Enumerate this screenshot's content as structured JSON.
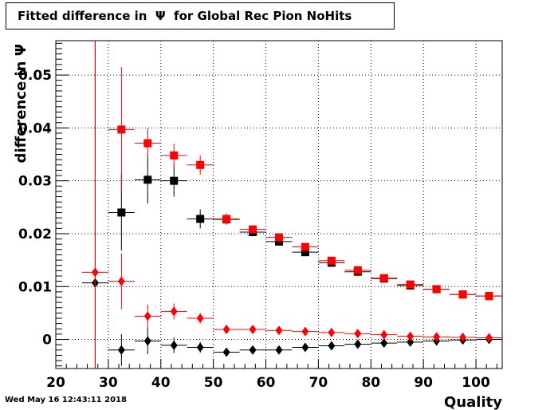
{
  "title": "Fitted difference in  Ψ  for Global Rec Pion NoHits",
  "timestamp": "Wed May 16 12:43:11 2018",
  "chart_data": {
    "type": "scatter",
    "title": "Fitted difference in  Ψ  for Global Rec Pion NoHits",
    "xlabel": "Quality",
    "ylabel": "difference in  Ψ",
    "xlim": [
      20,
      105
    ],
    "ylim": [
      -0.0055,
      0.0565
    ],
    "xticks": [
      20,
      30,
      40,
      50,
      60,
      70,
      80,
      90,
      100
    ],
    "xtick_labels": [
      "20",
      "30",
      "40",
      "50",
      "60",
      "70",
      "80",
      "90",
      "100"
    ],
    "yticks": [
      0,
      0.01,
      0.02,
      0.03,
      0.04,
      0.05
    ],
    "ytick_labels": [
      "0",
      "0.01",
      "0.02",
      "0.03",
      "0.04",
      "0.05"
    ],
    "grid": true,
    "x_bin_half_width": 2.5,
    "series": [
      {
        "marker": "square",
        "color": "#000000",
        "x": [
          32.5,
          37.5,
          42.5,
          47.5,
          52.5,
          57.5,
          62.5,
          67.5,
          72.5,
          77.5,
          82.5,
          87.5,
          92.5,
          97.5,
          102.5
        ],
        "y": [
          0.024,
          0.0302,
          0.03,
          0.0228,
          0.0227,
          0.0203,
          0.0185,
          0.0165,
          0.0145,
          0.0128,
          0.0115,
          0.0102,
          0.0095,
          0.0085,
          0.0082
        ],
        "yerr": [
          0.0072,
          0.0045,
          0.003,
          0.0018,
          0.001,
          0.0008,
          0.0006,
          0.0005,
          0.0004,
          0.0004,
          0.0003,
          0.0003,
          0.0003,
          0.0002,
          0.0002
        ]
      },
      {
        "marker": "square",
        "color": "#ff0000",
        "x": [
          32.5,
          37.5,
          42.5,
          47.5,
          52.5,
          57.5,
          62.5,
          67.5,
          72.5,
          77.5,
          82.5,
          87.5,
          92.5,
          97.5,
          102.5
        ],
        "y": [
          0.0397,
          0.0371,
          0.0348,
          0.033,
          0.0228,
          0.0208,
          0.0193,
          0.0175,
          0.0149,
          0.0131,
          0.0116,
          0.0104,
          0.0095,
          0.0085,
          0.0082
        ],
        "yerr": [
          0.0118,
          0.0028,
          0.0022,
          0.0018,
          0.001,
          0.0008,
          0.0006,
          0.0005,
          0.0004,
          0.0004,
          0.0003,
          0.0003,
          0.0003,
          0.0002,
          0.0002
        ]
      },
      {
        "marker": "diamond",
        "color": "#000000",
        "x": [
          27.5,
          32.5,
          37.5,
          42.5,
          47.5,
          52.5,
          57.5,
          62.5,
          67.5,
          72.5,
          77.5,
          82.5,
          87.5,
          92.5,
          97.5,
          102.5
        ],
        "y": [
          0.0107,
          -0.002,
          -0.0003,
          -0.0011,
          -0.0015,
          -0.0024,
          -0.002,
          -0.002,
          -0.0015,
          -0.0012,
          -0.0009,
          -0.0007,
          -0.0005,
          -0.0003,
          -0.0001,
          0.0
        ],
        "yerr": [
          0.07,
          0.003,
          0.0025,
          0.0015,
          0.001,
          0.0007,
          0.0005,
          0.0005,
          0.0004,
          0.0003,
          0.0003,
          0.0002,
          0.0002,
          0.0002,
          0.0002,
          0.0002
        ]
      },
      {
        "marker": "diamond",
        "color": "#ff0000",
        "x": [
          27.5,
          32.5,
          37.5,
          42.5,
          47.5,
          52.5,
          57.5,
          62.5,
          67.5,
          72.5,
          77.5,
          82.5,
          87.5,
          92.5,
          97.5,
          102.5
        ],
        "y": [
          0.0127,
          0.011,
          0.0044,
          0.0053,
          0.004,
          0.0019,
          0.0019,
          0.0017,
          0.0015,
          0.0013,
          0.0011,
          0.0009,
          0.0006,
          0.0005,
          0.0004,
          0.0003
        ],
        "yerr": [
          0.07,
          0.0053,
          0.0022,
          0.0015,
          0.001,
          0.0006,
          0.0005,
          0.0004,
          0.0004,
          0.0003,
          0.0003,
          0.0002,
          0.0002,
          0.0002,
          0.0002,
          0.0002
        ]
      }
    ]
  }
}
